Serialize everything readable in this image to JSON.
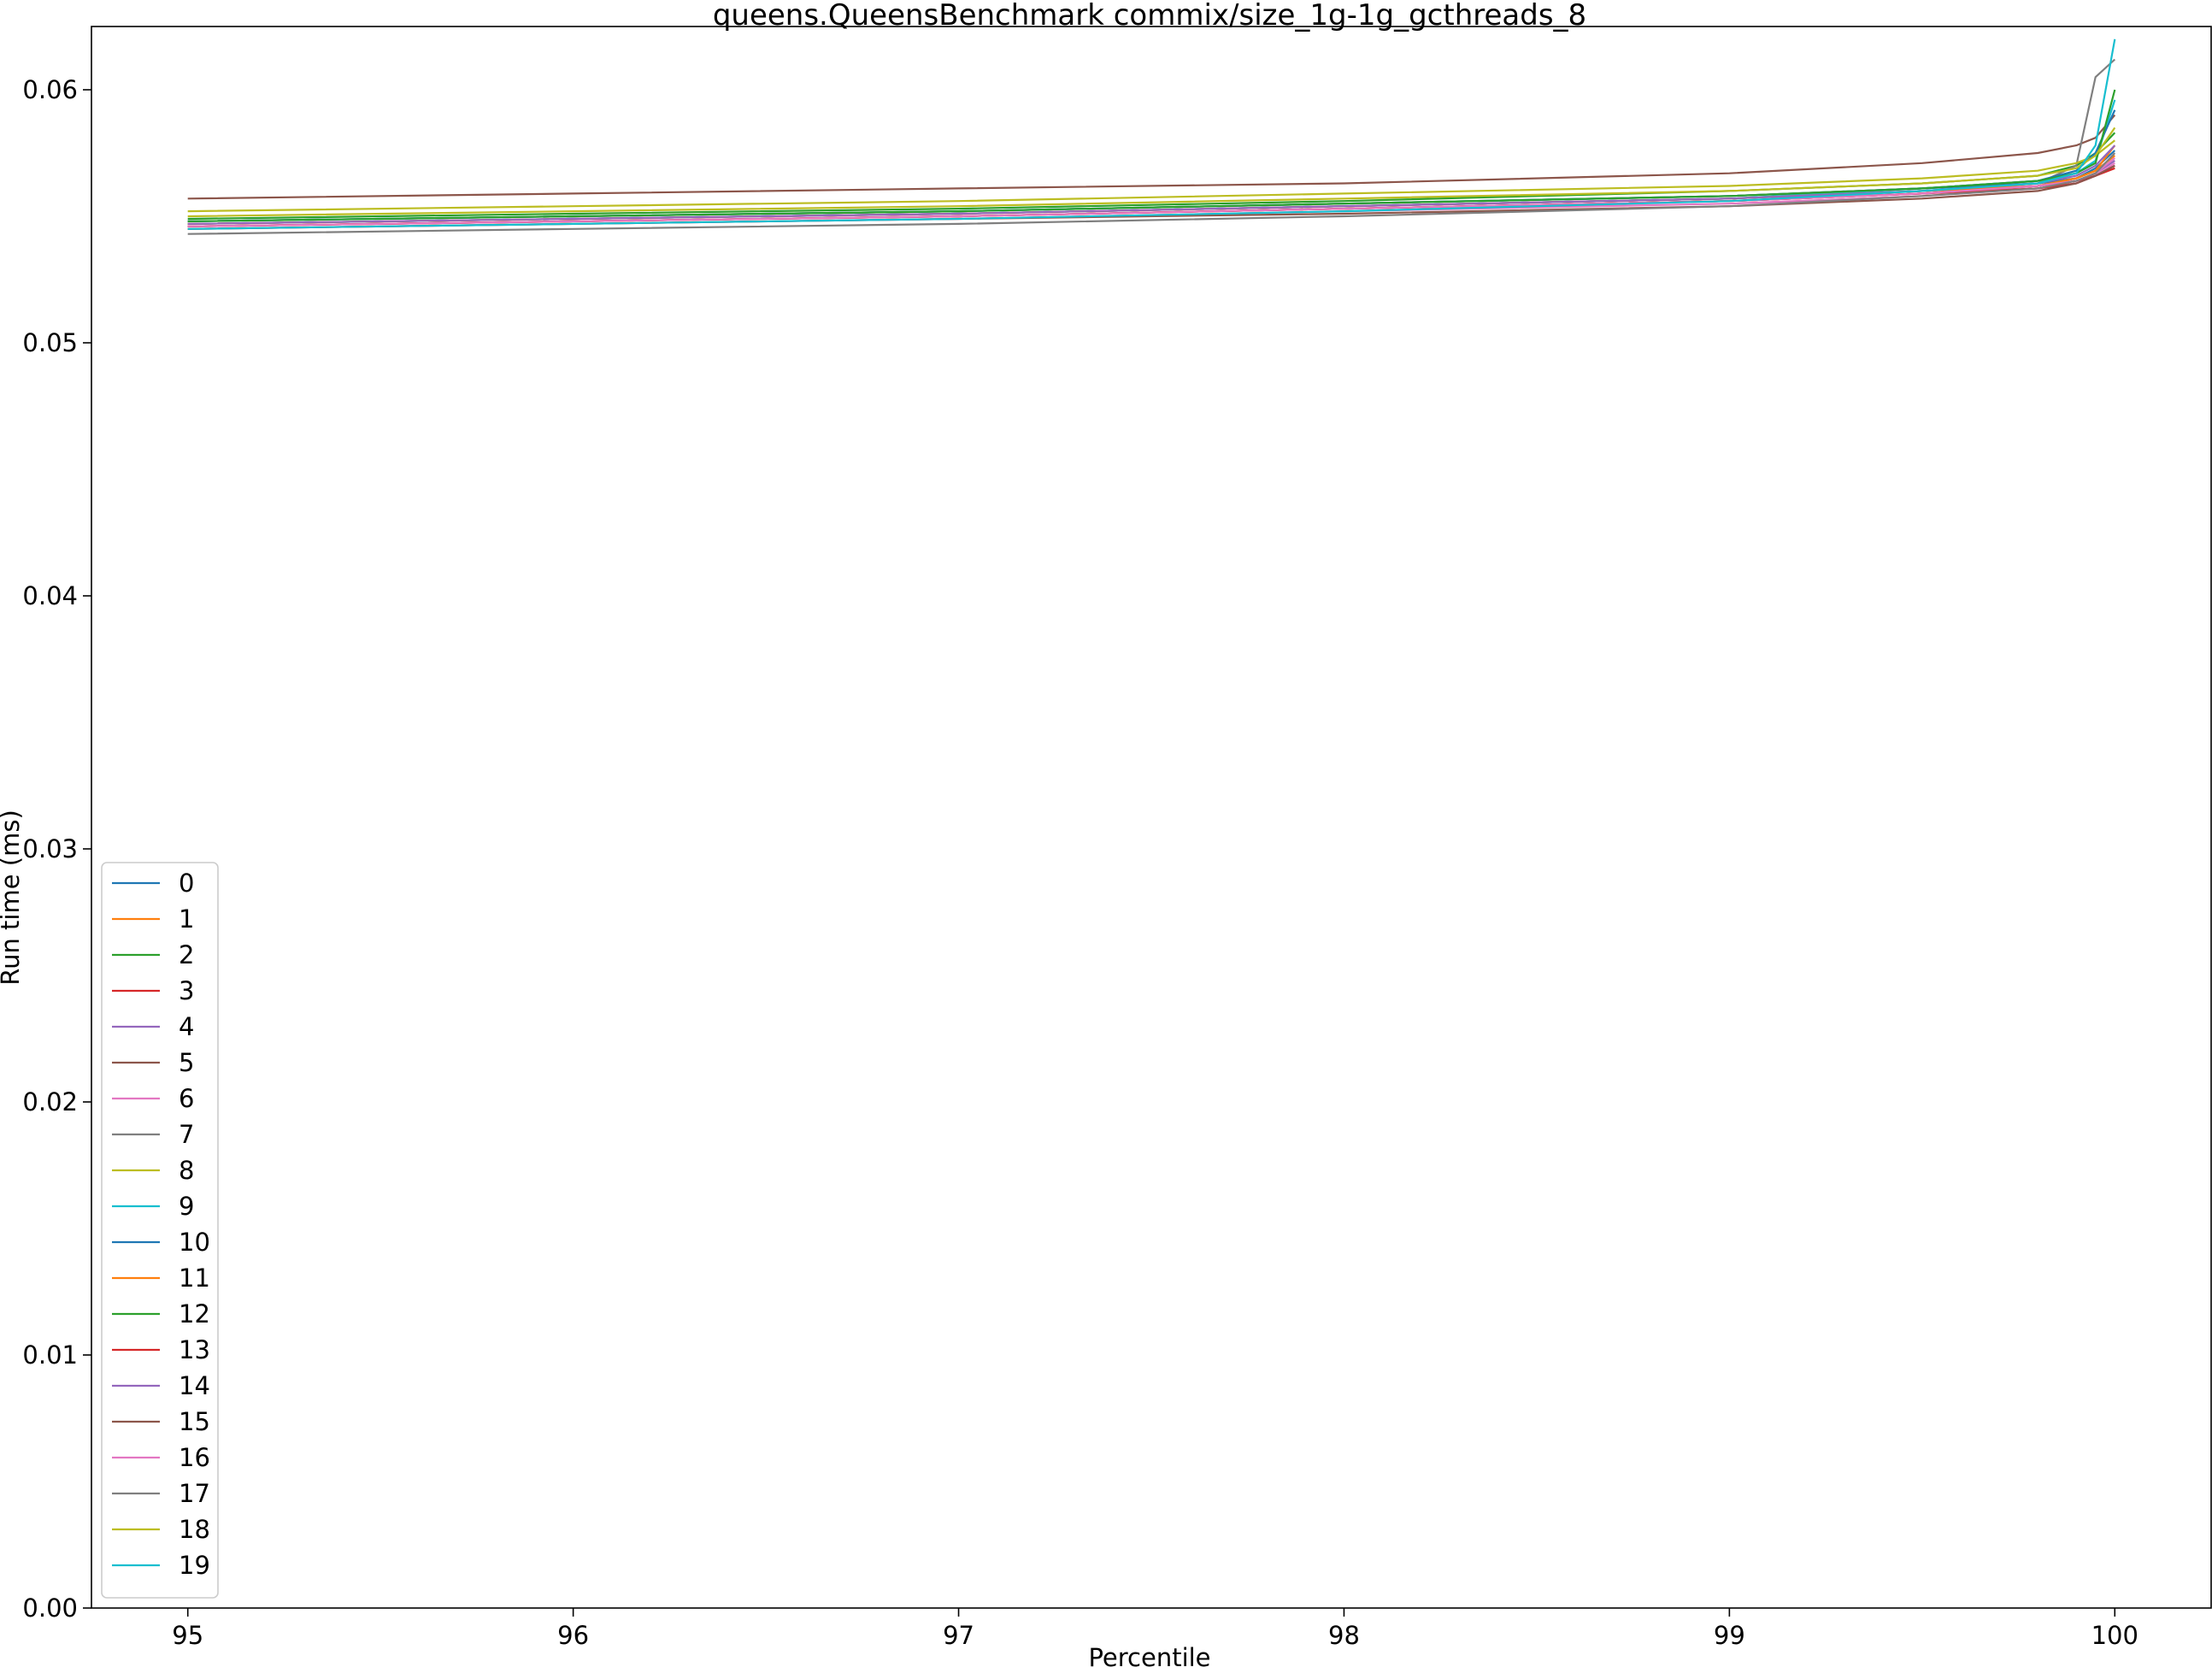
{
  "chart_data": {
    "type": "line",
    "title": "queens.QueensBenchmark commix/size_1g-1g_gcthreads_8",
    "xlabel": "Percentile",
    "ylabel": "Run time (ms)",
    "xlim": [
      94.75,
      100.25
    ],
    "ylim": [
      0.0,
      0.0625
    ],
    "xticks": [
      95,
      96,
      97,
      98,
      99,
      100
    ],
    "xtick_labels": [
      "95",
      "96",
      "97",
      "98",
      "99",
      "100"
    ],
    "yticks": [
      0.0,
      0.01,
      0.02,
      0.03,
      0.04,
      0.05,
      0.06
    ],
    "ytick_labels": [
      "0.00",
      "0.01",
      "0.02",
      "0.03",
      "0.04",
      "0.05",
      "0.06"
    ],
    "grid": false,
    "legend": {
      "placement": "lower-left"
    },
    "series": [
      {
        "name": "0",
        "color": "#1f77b4",
        "x": [
          95,
          96,
          97,
          98,
          99,
          99.5,
          99.8,
          99.9,
          99.95,
          100
        ],
        "values": [
          0.0548,
          0.055,
          0.0552,
          0.0555,
          0.0558,
          0.0561,
          0.0563,
          0.0565,
          0.0569,
          0.0576
        ]
      },
      {
        "name": "1",
        "color": "#ff7f0e",
        "x": [
          95,
          96,
          97,
          98,
          99,
          99.5,
          99.8,
          99.9,
          99.95,
          100
        ],
        "values": [
          0.0546,
          0.0548,
          0.055,
          0.0553,
          0.0556,
          0.0559,
          0.0562,
          0.0565,
          0.0568,
          0.0574
        ]
      },
      {
        "name": "2",
        "color": "#2ca02c",
        "x": [
          95,
          96,
          97,
          98,
          99,
          99.5,
          99.8,
          99.9,
          99.95,
          100
        ],
        "values": [
          0.0549,
          0.0551,
          0.0553,
          0.0556,
          0.056,
          0.0563,
          0.0566,
          0.057,
          0.0575,
          0.0583
        ]
      },
      {
        "name": "3",
        "color": "#d62728",
        "x": [
          95,
          96,
          97,
          98,
          99,
          99.5,
          99.8,
          99.9,
          99.95,
          100
        ],
        "values": [
          0.0546,
          0.0548,
          0.055,
          0.0553,
          0.0556,
          0.0559,
          0.0562,
          0.0564,
          0.0566,
          0.0569
        ]
      },
      {
        "name": "4",
        "color": "#9467bd",
        "x": [
          95,
          96,
          97,
          98,
          99,
          99.5,
          99.8,
          99.9,
          99.95,
          100
        ],
        "values": [
          0.0547,
          0.0549,
          0.0551,
          0.0554,
          0.0557,
          0.056,
          0.0562,
          0.0564,
          0.0567,
          0.0572
        ]
      },
      {
        "name": "5",
        "color": "#8c564b",
        "x": [
          95,
          96,
          97,
          98,
          99,
          99.5,
          99.8,
          99.9,
          99.95,
          100
        ],
        "values": [
          0.0557,
          0.0559,
          0.0561,
          0.0563,
          0.0567,
          0.0571,
          0.0575,
          0.0578,
          0.0581,
          0.059
        ]
      },
      {
        "name": "6",
        "color": "#e377c2",
        "x": [
          95,
          96,
          97,
          98,
          99,
          99.5,
          99.8,
          99.9,
          99.95,
          100
        ],
        "values": [
          0.0545,
          0.0547,
          0.0549,
          0.0552,
          0.0555,
          0.0558,
          0.0561,
          0.0563,
          0.0566,
          0.0571
        ]
      },
      {
        "name": "7",
        "color": "#7f7f7f",
        "x": [
          95,
          96,
          97,
          98,
          99,
          99.5,
          99.8,
          99.9,
          99.95,
          100
        ],
        "values": [
          0.0547,
          0.0549,
          0.0551,
          0.0554,
          0.0557,
          0.056,
          0.0563,
          0.057,
          0.0605,
          0.0612
        ]
      },
      {
        "name": "8",
        "color": "#bcbd22",
        "x": [
          95,
          96,
          97,
          98,
          99,
          99.5,
          99.8,
          99.9,
          99.95,
          100
        ],
        "values": [
          0.0552,
          0.0554,
          0.0556,
          0.0559,
          0.0562,
          0.0565,
          0.0568,
          0.0571,
          0.0574,
          0.058
        ]
      },
      {
        "name": "9",
        "color": "#17becf",
        "x": [
          95,
          96,
          97,
          98,
          99,
          99.5,
          99.8,
          99.9,
          99.95,
          100
        ],
        "values": [
          0.0547,
          0.0549,
          0.0551,
          0.0554,
          0.0557,
          0.0561,
          0.0564,
          0.0567,
          0.0572,
          0.0596
        ]
      },
      {
        "name": "10",
        "color": "#1f77b4",
        "x": [
          95,
          96,
          97,
          98,
          99,
          99.5,
          99.8,
          99.9,
          99.95,
          100
        ],
        "values": [
          0.0548,
          0.055,
          0.0552,
          0.0555,
          0.0558,
          0.0561,
          0.0564,
          0.0568,
          0.0575,
          0.0592
        ]
      },
      {
        "name": "11",
        "color": "#ff7f0e",
        "x": [
          95,
          96,
          97,
          98,
          99,
          99.5,
          99.8,
          99.9,
          99.95,
          100
        ],
        "values": [
          0.0547,
          0.0549,
          0.0551,
          0.0554,
          0.0557,
          0.056,
          0.0562,
          0.0565,
          0.0568,
          0.0578
        ]
      },
      {
        "name": "12",
        "color": "#2ca02c",
        "x": [
          95,
          96,
          97,
          98,
          99,
          99.5,
          99.8,
          99.9,
          99.95,
          100
        ],
        "values": [
          0.0548,
          0.055,
          0.0552,
          0.0555,
          0.0558,
          0.0561,
          0.0564,
          0.0567,
          0.0571,
          0.06
        ]
      },
      {
        "name": "13",
        "color": "#d62728",
        "x": [
          95,
          96,
          97,
          98,
          99,
          99.5,
          99.8,
          99.9,
          99.95,
          100
        ],
        "values": [
          0.0546,
          0.0548,
          0.055,
          0.0553,
          0.0556,
          0.0559,
          0.0561,
          0.0563,
          0.0566,
          0.057
        ]
      },
      {
        "name": "14",
        "color": "#9467bd",
        "x": [
          95,
          96,
          97,
          98,
          99,
          99.5,
          99.8,
          99.9,
          99.95,
          100
        ],
        "values": [
          0.0547,
          0.0549,
          0.0551,
          0.0554,
          0.0557,
          0.056,
          0.0563,
          0.0566,
          0.057,
          0.0578
        ]
      },
      {
        "name": "15",
        "color": "#8c564b",
        "x": [
          95,
          96,
          97,
          98,
          99,
          99.5,
          99.8,
          99.9,
          99.95,
          100
        ],
        "values": [
          0.0545,
          0.0547,
          0.0549,
          0.0551,
          0.0554,
          0.0557,
          0.056,
          0.0563,
          0.0566,
          0.057
        ]
      },
      {
        "name": "16",
        "color": "#e377c2",
        "x": [
          95,
          96,
          97,
          98,
          99,
          99.5,
          99.8,
          99.9,
          99.95,
          100
        ],
        "values": [
          0.0546,
          0.0548,
          0.055,
          0.0553,
          0.0556,
          0.0559,
          0.0562,
          0.0564,
          0.0567,
          0.0573
        ]
      },
      {
        "name": "17",
        "color": "#7f7f7f",
        "x": [
          95,
          96,
          97,
          98,
          99,
          99.5,
          99.8,
          99.9,
          99.95,
          100
        ],
        "values": [
          0.0543,
          0.0545,
          0.0547,
          0.055,
          0.0554,
          0.0558,
          0.0561,
          0.0564,
          0.0567,
          0.0575
        ]
      },
      {
        "name": "18",
        "color": "#bcbd22",
        "x": [
          95,
          96,
          97,
          98,
          99,
          99.5,
          99.8,
          99.9,
          99.95,
          100
        ],
        "values": [
          0.055,
          0.0552,
          0.0554,
          0.0557,
          0.056,
          0.0563,
          0.0566,
          0.0569,
          0.0574,
          0.0585
        ]
      },
      {
        "name": "19",
        "color": "#17becf",
        "x": [
          95,
          96,
          97,
          98,
          99,
          99.5,
          99.8,
          99.9,
          99.95,
          100
        ],
        "values": [
          0.0545,
          0.0547,
          0.0549,
          0.0552,
          0.0556,
          0.056,
          0.0563,
          0.0567,
          0.0578,
          0.062
        ]
      }
    ]
  }
}
